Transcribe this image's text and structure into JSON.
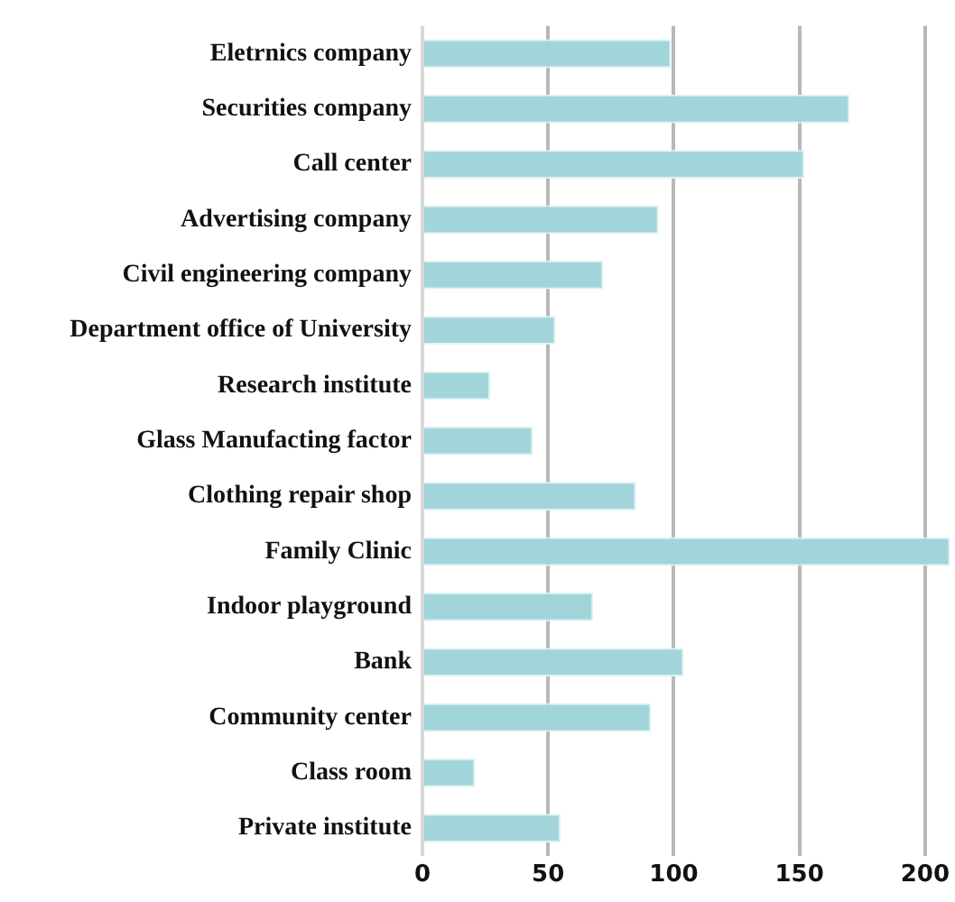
{
  "chart_data": {
    "type": "bar",
    "orientation": "horizontal",
    "categories": [
      "Eletrnics company",
      "Securities company",
      "Call center",
      "Advertising company",
      "Civil engineering company",
      "Department office of University",
      "Research institute",
      "Glass Manufacting factor",
      "Clothing repair shop",
      "Family Clinic",
      "Indoor playground",
      "Bank",
      "Community center",
      "Class room",
      "Private institute"
    ],
    "values": [
      99,
      170,
      152,
      94,
      72,
      53,
      27,
      44,
      85,
      210,
      68,
      104,
      91,
      21,
      55
    ],
    "color": "#a2d5da",
    "xlim": [
      0,
      210
    ],
    "xticks": [
      0,
      50,
      100,
      150,
      200
    ],
    "grid": "x"
  }
}
